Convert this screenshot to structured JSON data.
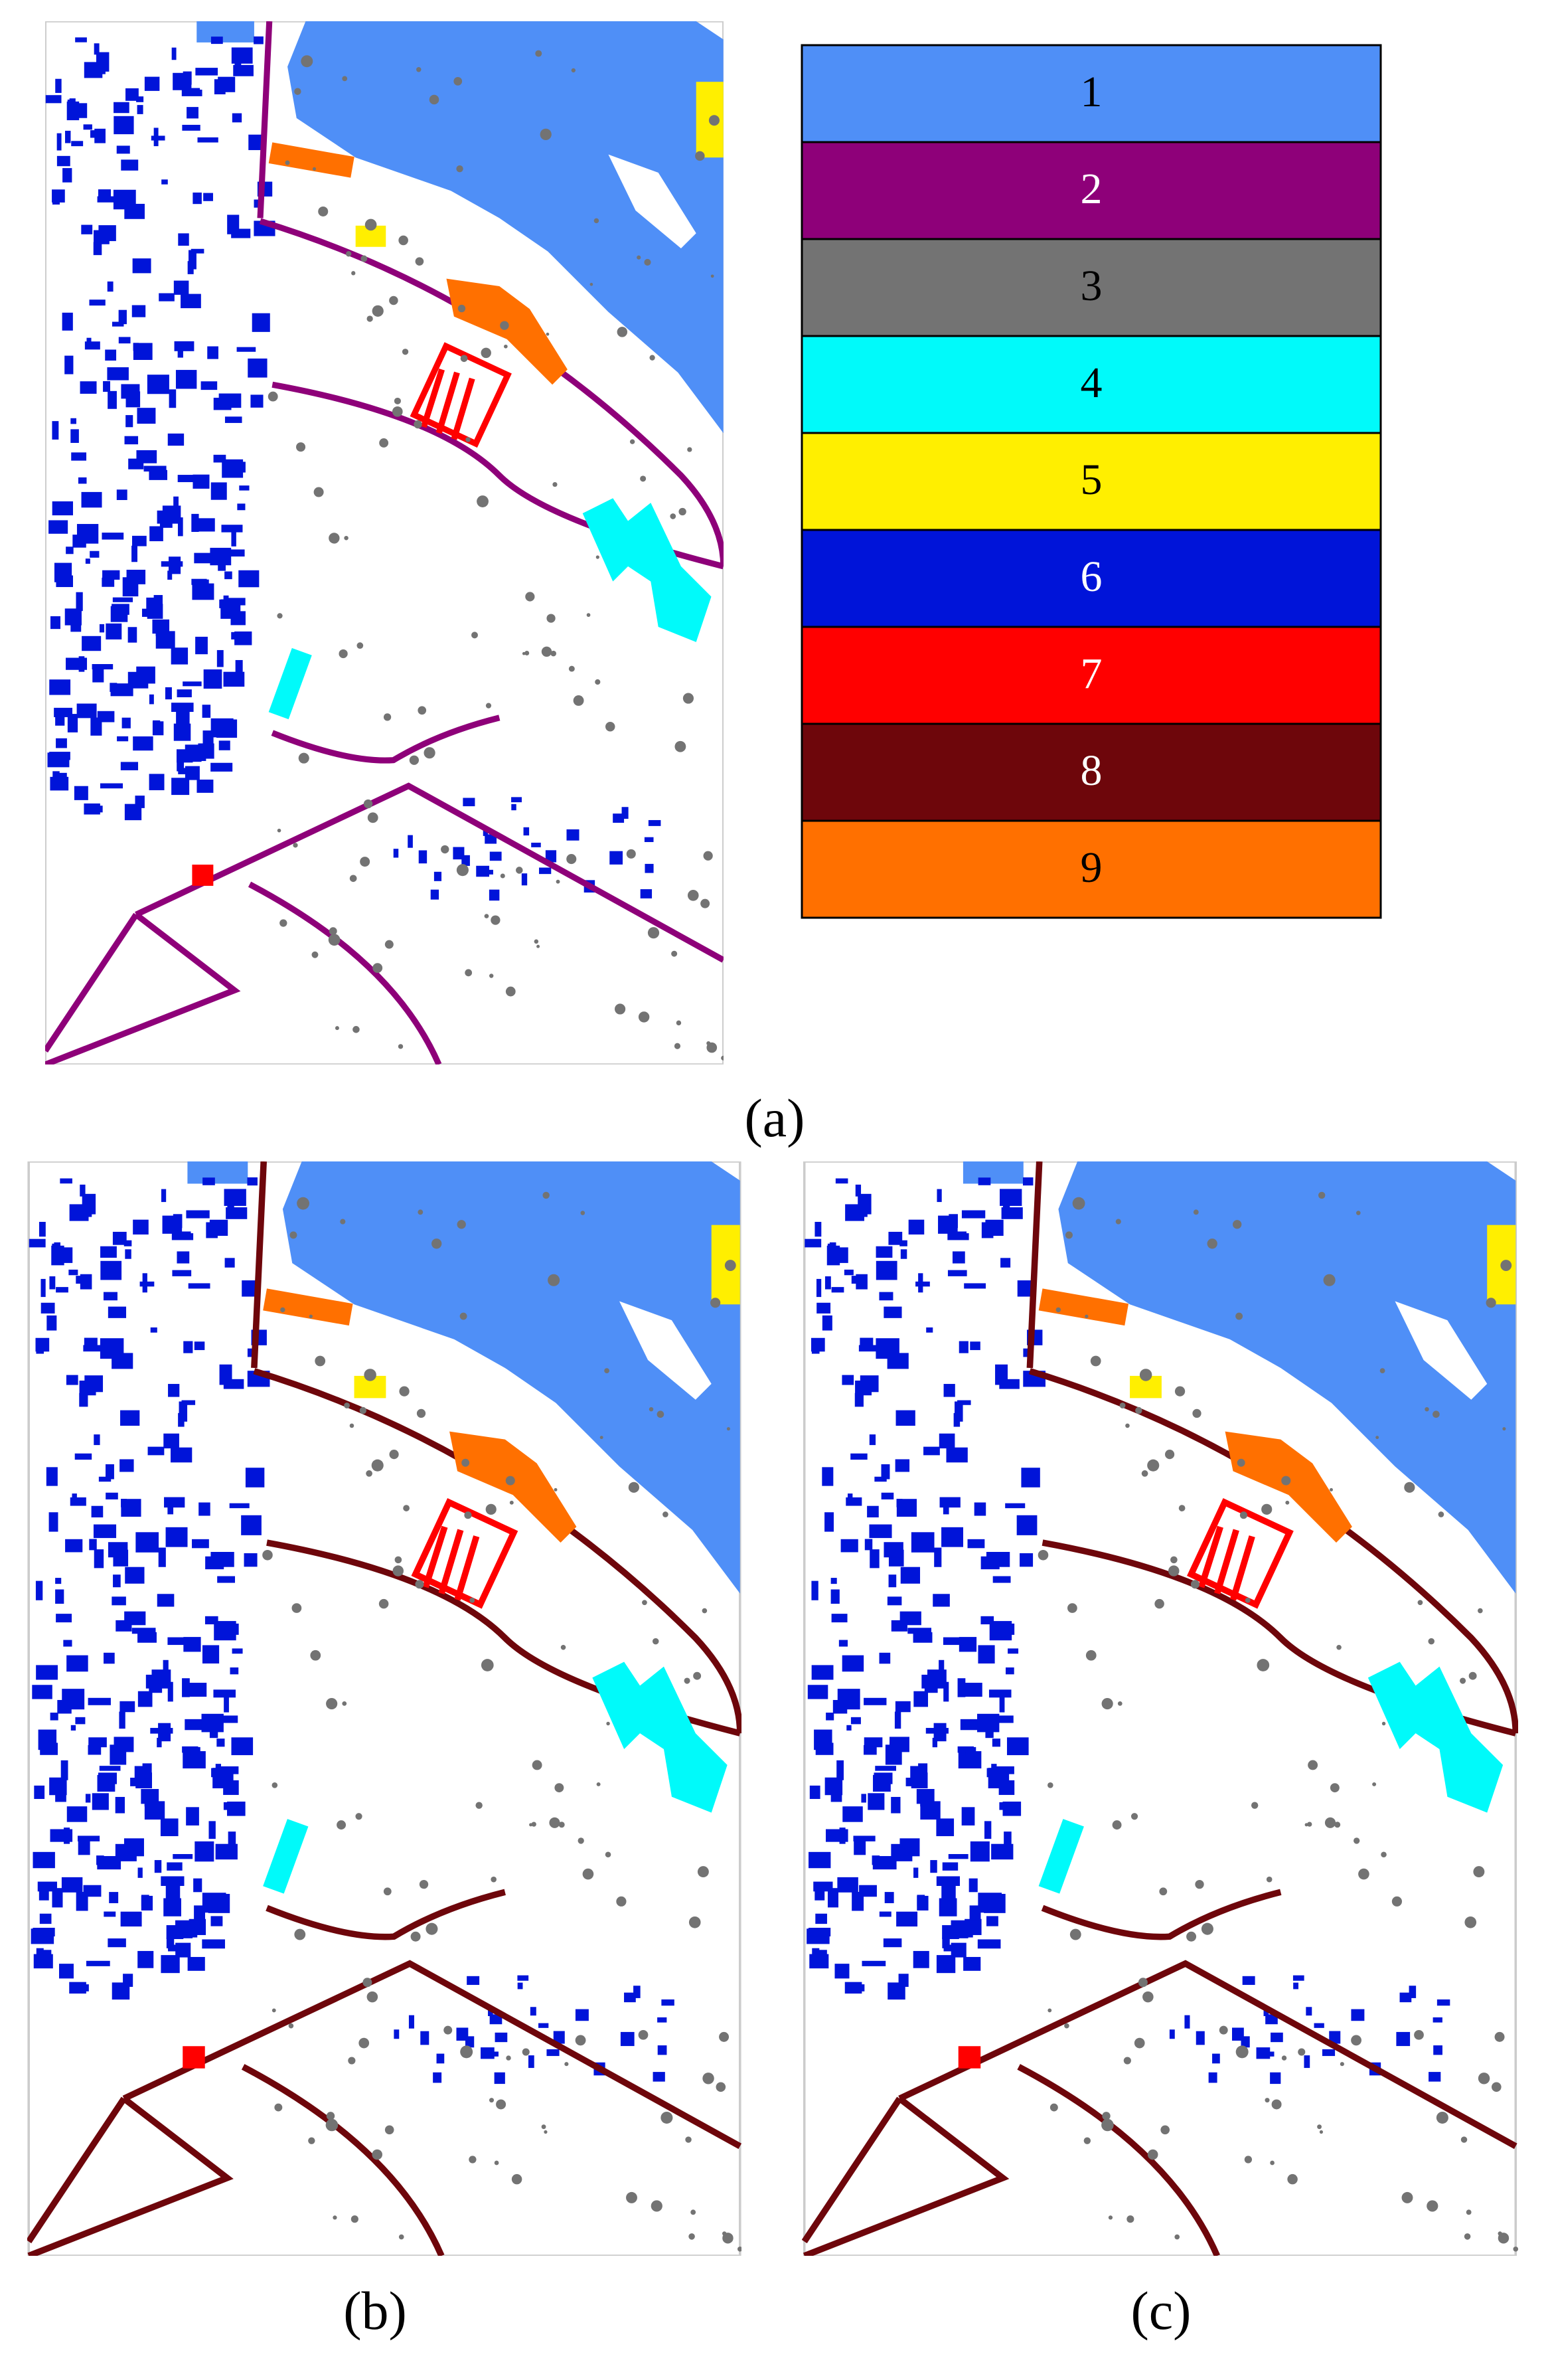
{
  "legend": {
    "items": [
      {
        "label": "1",
        "color": "#4f8ff7"
      },
      {
        "label": "2",
        "color": "#8e0079"
      },
      {
        "label": "3",
        "color": "#737373"
      },
      {
        "label": "4",
        "color": "#00fafa"
      },
      {
        "label": "5",
        "color": "#ffef00"
      },
      {
        "label": "6",
        "color": "#0014d9"
      },
      {
        "label": "7",
        "color": "#ff0000"
      },
      {
        "label": "8",
        "color": "#6e060b"
      },
      {
        "label": "9",
        "color": "#ff7000"
      }
    ]
  },
  "panels": [
    {
      "caption": "(a)"
    },
    {
      "caption": "(b)"
    },
    {
      "caption": "(c)"
    }
  ]
}
